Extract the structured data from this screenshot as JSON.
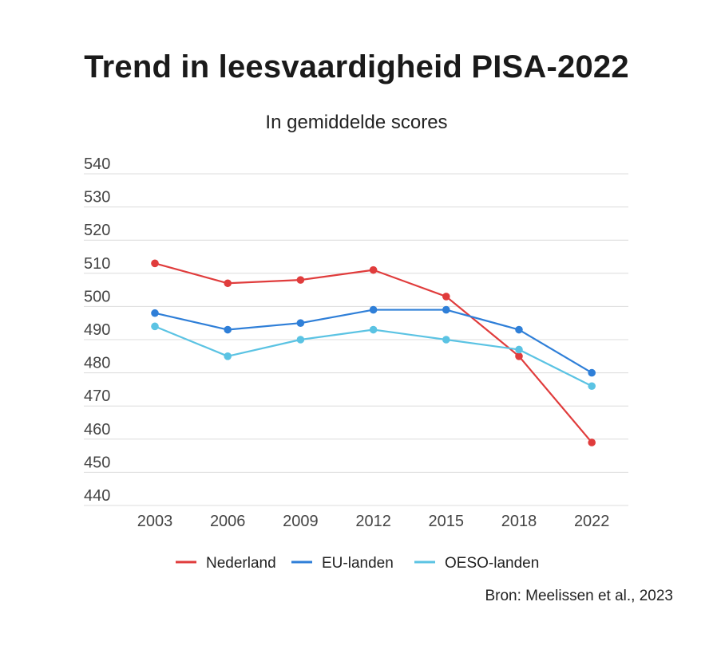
{
  "title": "Trend in leesvaardigheid PISA-2022",
  "subtitle": "In gemiddelde scores",
  "source": "Bron: Meelissen et al., 2023",
  "chart_data": {
    "type": "line",
    "title": "Trend in leesvaardigheid PISA-2022",
    "subtitle": "In gemiddelde scores",
    "xlabel": "",
    "ylabel": "",
    "categories": [
      "2003",
      "2006",
      "2009",
      "2012",
      "2015",
      "2018",
      "2022"
    ],
    "ylim": [
      440,
      540
    ],
    "yticks": [
      540,
      530,
      520,
      510,
      500,
      490,
      480,
      470,
      460,
      450,
      440
    ],
    "grid": true,
    "legend_position": "bottom-center",
    "series": [
      {
        "name": "Nederland",
        "color": "#e03c3c",
        "values": [
          513,
          507,
          508,
          511,
          503,
          485,
          459
        ]
      },
      {
        "name": "EU-landen",
        "color": "#2f7fd8",
        "values": [
          498,
          493,
          495,
          499,
          499,
          493,
          480
        ]
      },
      {
        "name": "OESO-landen",
        "color": "#5bc3e3",
        "values": [
          494,
          485,
          490,
          493,
          490,
          487,
          476
        ]
      }
    ]
  }
}
